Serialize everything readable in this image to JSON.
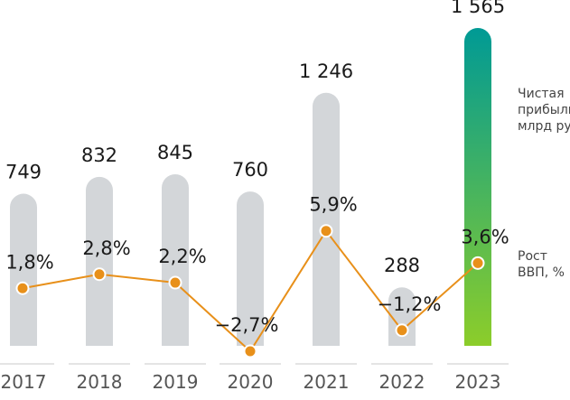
{
  "chart_data": {
    "type": "bar",
    "categories": [
      "2017",
      "2018",
      "2019",
      "2020",
      "2021",
      "2022",
      "2023"
    ],
    "series": [
      {
        "name": "Чистая прибыль, млрд руб.",
        "kind": "bar",
        "values": [
          749,
          832,
          845,
          760,
          1246,
          288,
          1565
        ],
        "labels": [
          "749",
          "832",
          "845",
          "760",
          "1 246",
          "288",
          "1 565"
        ]
      },
      {
        "name": "Рост ВВП, %",
        "kind": "line",
        "values": [
          1.8,
          2.8,
          2.2,
          -2.7,
          5.9,
          -1.2,
          3.6
        ],
        "labels": [
          "1,8%",
          "2,8%",
          "2,2%",
          "−2,7%",
          "5,9%",
          "−1,2%",
          "3,6%"
        ]
      }
    ],
    "legend": {
      "placement": "right",
      "bars_lines": [
        "Чистая",
        "прибыль,",
        "млрд руб."
      ],
      "line_lines": [
        "Рост",
        "ВВП, %"
      ]
    },
    "colors": {
      "bar": "#d3d6d9",
      "bar_highlight_top": "#009a95",
      "bar_highlight_bottom": "#8ccd2a",
      "line": "#e8901a",
      "baseline": "#c8c8c8"
    }
  }
}
